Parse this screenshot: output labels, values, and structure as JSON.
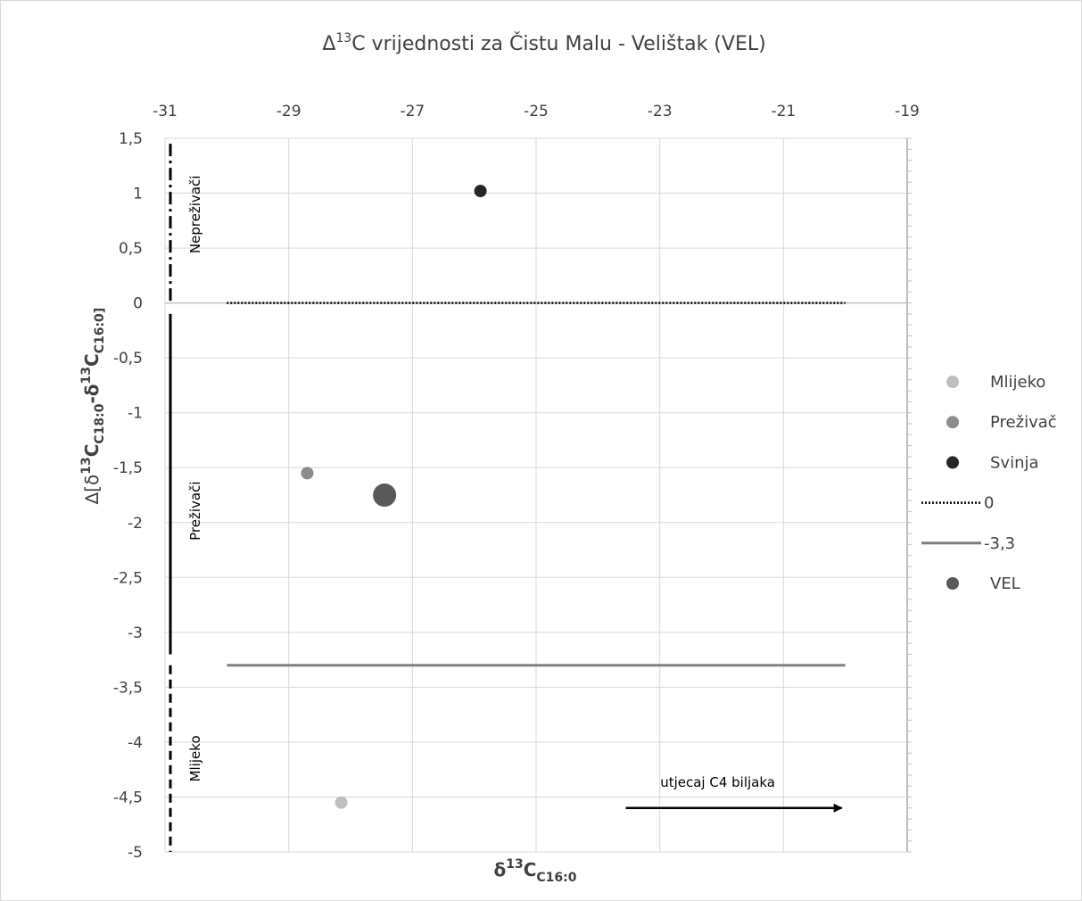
{
  "chart_data": {
    "type": "scatter",
    "title": {
      "prefix": "Δ",
      "sup": "13",
      "rest": "C vrijednosti za Čistu Malu - Velištak (VEL)"
    },
    "xlabel": {
      "main": "δ",
      "sup": "13",
      "mid": "C",
      "sub": "C16:0"
    },
    "ylabel": {
      "main": "∆[δ",
      "sup1": "13",
      "mid1": "C",
      "sub1": "C18:0",
      "dash": "-δ",
      "sup2": "13",
      "mid2": "C",
      "sub2": "C16:0]"
    },
    "x_axis": {
      "range": [
        -31,
        -19
      ],
      "position": "top",
      "ticks": [
        "-31",
        "-29",
        "-27",
        "-25",
        "-23",
        "-21",
        "-19"
      ]
    },
    "y_axis": {
      "range": [
        -5,
        1.5
      ],
      "ticks": [
        "1,5",
        "1",
        "0,5",
        "0",
        "-0,5",
        "-1",
        "-1,5",
        "-2",
        "-2,5",
        "-3",
        "-3,5",
        "-4",
        "-4,5",
        "-5"
      ]
    },
    "grid": true,
    "series": [
      {
        "name": "Mlijeko",
        "color": "#bfbfbf",
        "points": [
          {
            "x": -28.15,
            "y": -4.55
          }
        ]
      },
      {
        "name": "Preživač",
        "color": "#8c8c8c",
        "points": [
          {
            "x": -28.7,
            "y": -1.55
          }
        ]
      },
      {
        "name": "Svinja",
        "color": "#262626",
        "points": [
          {
            "x": -25.9,
            "y": 1.02
          }
        ]
      },
      {
        "name": "0",
        "color": "#000000",
        "line": [
          {
            "x": -30.0,
            "y": 0
          },
          {
            "x": -20.0,
            "y": 0
          }
        ]
      },
      {
        "name": "-3,3",
        "color": "#808080",
        "line": [
          {
            "x": -30.0,
            "y": -3.3
          },
          {
            "x": -20.0,
            "y": -3.3
          }
        ]
      },
      {
        "name": "VEL",
        "color": "#595959",
        "points": [
          {
            "x": -27.45,
            "y": -1.75
          }
        ]
      }
    ],
    "bands": [
      {
        "label": "Nepreživači",
        "y_range": [
          0,
          1.45
        ]
      },
      {
        "label": "Preživači",
        "y_range": [
          -3.2,
          -0.1
        ]
      },
      {
        "label": "Mlijeko",
        "y_range": [
          -5,
          -3.3
        ]
      }
    ],
    "annotation": {
      "text": "utjecaj C4 biljaka",
      "arrow_from": {
        "x": -23.55,
        "y": -4.6
      },
      "arrow_to": {
        "x": -20.0,
        "y": -4.6
      }
    },
    "legend": {
      "position": "right",
      "entries": [
        "Mlijeko",
        "Preživač",
        "Svinja",
        "0",
        "-3,3",
        "VEL"
      ]
    }
  }
}
